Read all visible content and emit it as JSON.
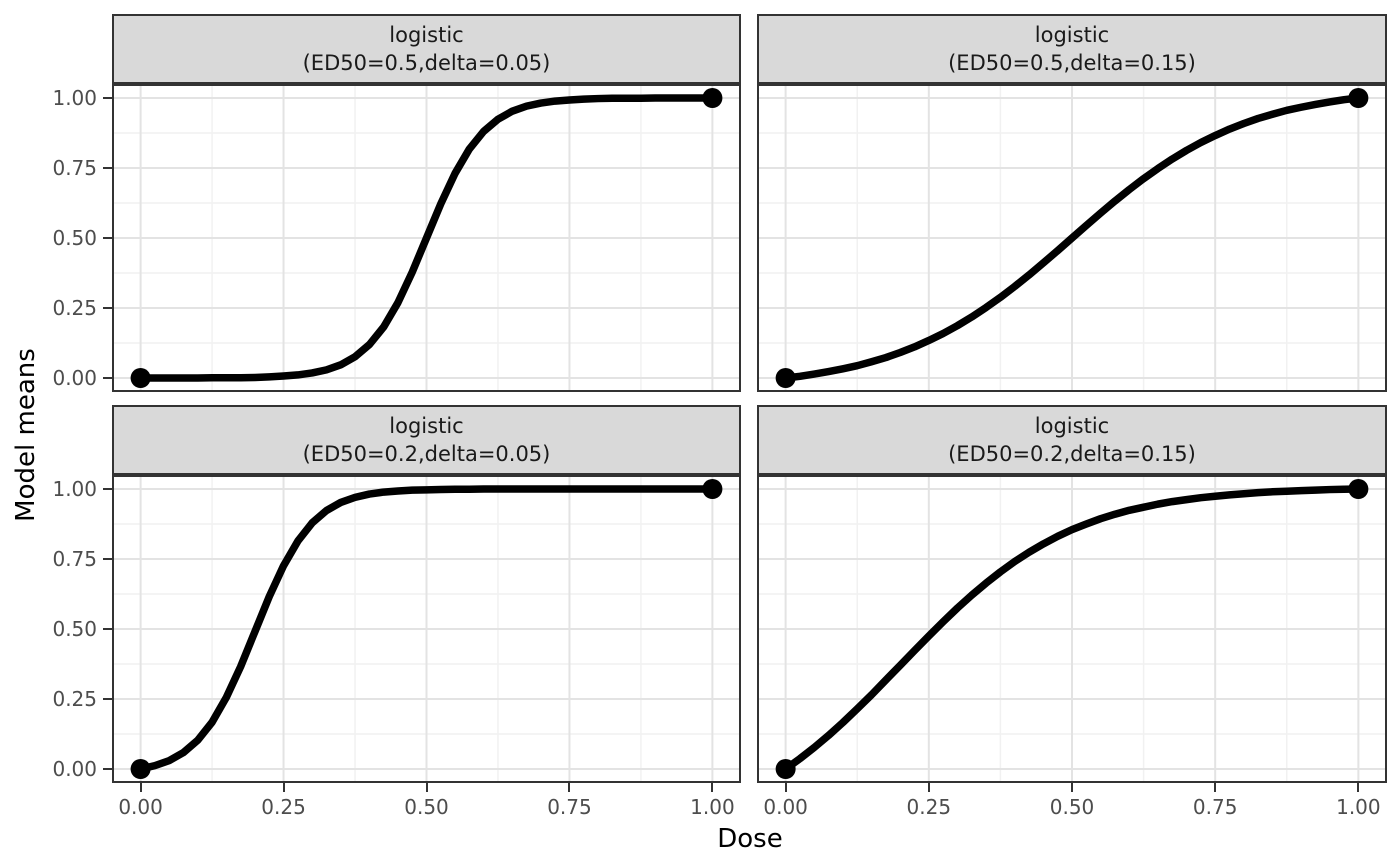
{
  "chart_data": {
    "type": "line",
    "description": "2x2 faceted dose-response curves (logistic model means), ggplot-style facet grid",
    "title": "",
    "xlabel": "Dose",
    "ylabel": "Model means",
    "xlim": [
      0,
      1
    ],
    "ylim": [
      0,
      1
    ],
    "axis_expansion": 0.05,
    "grid": "major and minor, light gray on white",
    "legend_position": "none",
    "x_ticks": {
      "values": [
        0,
        0.25,
        0.5,
        0.75,
        1
      ],
      "labels": [
        "0.00",
        "0.25",
        "0.50",
        "0.75",
        "1.00"
      ]
    },
    "y_ticks": {
      "values": [
        0,
        0.25,
        0.5,
        0.75,
        1
      ],
      "labels": [
        "0.00",
        "0.25",
        "0.50",
        "0.75",
        "1.00"
      ]
    },
    "minor_breaks": [
      0.125,
      0.375,
      0.625,
      0.875
    ],
    "x": [
      0,
      0.025,
      0.05,
      0.075,
      0.1,
      0.125,
      0.15,
      0.175,
      0.2,
      0.225,
      0.25,
      0.275,
      0.3,
      0.325,
      0.35,
      0.375,
      0.4,
      0.425,
      0.45,
      0.475,
      0.5,
      0.525,
      0.55,
      0.575,
      0.6,
      0.625,
      0.65,
      0.675,
      0.7,
      0.725,
      0.75,
      0.775,
      0.8,
      0.825,
      0.85,
      0.875,
      0.9,
      0.925,
      0.95,
      0.975,
      1
    ],
    "facets": [
      {
        "row": 0,
        "col": 0,
        "strip": [
          "logistic",
          "(ED50=0.5,delta=0.05)"
        ],
        "model": "logistic",
        "ED50": 0.5,
        "delta": 0.05,
        "y": [
          0,
          0,
          0,
          0,
          0,
          0.001,
          0.001,
          0.001,
          0.002,
          0.004,
          0.007,
          0.011,
          0.018,
          0.029,
          0.047,
          0.076,
          0.119,
          0.182,
          0.269,
          0.378,
          0.5,
          0.622,
          0.731,
          0.818,
          0.881,
          0.924,
          0.953,
          0.971,
          0.982,
          0.989,
          0.993,
          0.996,
          0.998,
          0.999,
          0.999,
          0.999,
          1,
          1,
          1,
          1,
          1
        ],
        "points": [
          [
            0,
            0
          ],
          [
            1,
            1
          ]
        ]
      },
      {
        "row": 0,
        "col": 1,
        "strip": [
          "logistic",
          "(ED50=0.5,delta=0.15)"
        ],
        "model": "logistic",
        "ED50": 0.5,
        "delta": 0.15,
        "y": [
          0,
          0.006,
          0.014,
          0.023,
          0.033,
          0.044,
          0.058,
          0.073,
          0.091,
          0.111,
          0.134,
          0.159,
          0.187,
          0.218,
          0.252,
          0.288,
          0.327,
          0.368,
          0.411,
          0.455,
          0.5,
          0.545,
          0.589,
          0.632,
          0.673,
          0.712,
          0.748,
          0.782,
          0.813,
          0.841,
          0.866,
          0.889,
          0.909,
          0.927,
          0.942,
          0.956,
          0.967,
          0.977,
          0.986,
          0.994,
          1
        ],
        "points": [
          [
            0,
            0
          ],
          [
            1,
            1
          ]
        ]
      },
      {
        "row": 1,
        "col": 0,
        "strip": [
          "logistic",
          "(ED50=0.2,delta=0.05)"
        ],
        "model": "logistic",
        "ED50": 0.2,
        "delta": 0.05,
        "y": [
          0,
          0.012,
          0.03,
          0.059,
          0.103,
          0.167,
          0.256,
          0.366,
          0.491,
          0.616,
          0.726,
          0.814,
          0.879,
          0.923,
          0.952,
          0.97,
          0.982,
          0.989,
          0.993,
          0.996,
          0.997,
          0.998,
          0.999,
          0.999,
          1,
          1,
          1,
          1,
          1,
          1,
          1,
          1,
          1,
          1,
          1,
          1,
          1,
          1,
          1,
          1,
          1
        ],
        "points": [
          [
            0,
            0
          ],
          [
            1,
            1
          ]
        ]
      },
      {
        "row": 1,
        "col": 1,
        "strip": [
          "logistic",
          "(ED50=0.2,delta=0.15)"
        ],
        "model": "logistic",
        "ED50": 0.2,
        "delta": 0.15,
        "y": [
          0,
          0.037,
          0.077,
          0.12,
          0.166,
          0.215,
          0.265,
          0.318,
          0.37,
          0.423,
          0.475,
          0.526,
          0.575,
          0.621,
          0.664,
          0.704,
          0.741,
          0.774,
          0.804,
          0.831,
          0.855,
          0.875,
          0.894,
          0.91,
          0.924,
          0.935,
          0.946,
          0.955,
          0.962,
          0.969,
          0.974,
          0.979,
          0.983,
          0.987,
          0.99,
          0.992,
          0.994,
          0.996,
          0.998,
          0.999,
          1
        ],
        "points": [
          [
            0,
            0
          ],
          [
            1,
            1
          ]
        ]
      }
    ],
    "style": {
      "curve_color": "#000000",
      "curve_width": 7.5,
      "point_radius": 10,
      "strip_fill": "#d9d9d9",
      "strip_border": "#333333",
      "panel_border": "#333333",
      "grid_major_color": "#e3e3e3",
      "grid_minor_color": "#f1f1f1",
      "tick_color": "#333333",
      "tick_label_color": "#4d4d4d"
    }
  }
}
